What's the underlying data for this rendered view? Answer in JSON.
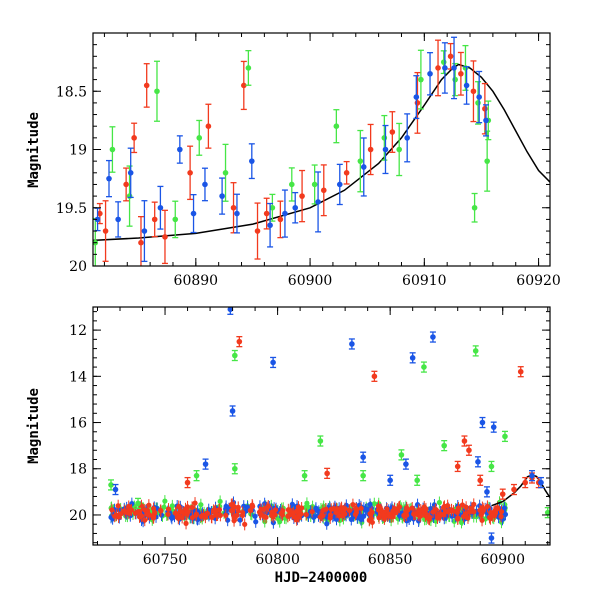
{
  "colors": {
    "red": "#f23a1e",
    "green": "#46e646",
    "blue": "#1a55e6",
    "model": "#000000"
  },
  "chart_data": [
    {
      "type": "scatter",
      "title": "",
      "xlabel": "",
      "ylabel": "Magnitude",
      "xlim": [
        60881,
        60921
      ],
      "ylim": [
        20,
        18
      ],
      "y_inverted": true,
      "xticks": [
        60890,
        60900,
        60910,
        60920
      ],
      "xtick_labels": [
        "60890",
        "60900",
        "60910",
        "60920"
      ],
      "yticks": [
        18.5,
        19,
        19.5,
        20
      ],
      "ytick_labels": [
        "18.5",
        "19",
        "19.5",
        "20"
      ],
      "series": [
        {
          "color": "red",
          "errorbars": true,
          "points": [
            [
              60881.6,
              19.55
            ],
            [
              60882.1,
              19.7
            ],
            [
              60883.9,
              19.3
            ],
            [
              60884.6,
              18.9
            ],
            [
              60885.2,
              19.8
            ],
            [
              60885.7,
              18.45
            ],
            [
              60886.4,
              19.6
            ],
            [
              60887.3,
              19.75
            ],
            [
              60889.5,
              19.2
            ],
            [
              60891.1,
              18.8
            ],
            [
              60893.3,
              19.5
            ],
            [
              60894.2,
              18.45
            ],
            [
              60895.4,
              19.7
            ],
            [
              60896.2,
              19.55
            ],
            [
              60897.4,
              19.6
            ],
            [
              60899.3,
              19.4
            ],
            [
              60901.2,
              19.35
            ],
            [
              60903.2,
              19.2
            ],
            [
              60905.3,
              19.0
            ],
            [
              60907.2,
              18.85
            ],
            [
              60909.4,
              18.6
            ],
            [
              60911.2,
              18.3
            ],
            [
              60912.3,
              18.2
            ],
            [
              60913.2,
              18.35
            ],
            [
              60914.3,
              18.5
            ],
            [
              60915.3,
              18.65
            ]
          ]
        },
        {
          "color": "green",
          "errorbars": true,
          "points": [
            [
              60881.2,
              19.8
            ],
            [
              60882.7,
              19.0
            ],
            [
              60884.2,
              19.4
            ],
            [
              60886.6,
              18.5
            ],
            [
              60888.2,
              19.6
            ],
            [
              60890.3,
              18.9
            ],
            [
              60892.6,
              19.2
            ],
            [
              60894.6,
              18.3
            ],
            [
              60896.7,
              19.5
            ],
            [
              60898.4,
              19.3
            ],
            [
              60900.4,
              19.3
            ],
            [
              60902.3,
              18.8
            ],
            [
              60904.4,
              19.1
            ],
            [
              60906.5,
              18.9
            ],
            [
              60907.8,
              19.0
            ],
            [
              60909.7,
              18.4
            ],
            [
              60911.7,
              18.25
            ],
            [
              60912.7,
              18.4
            ],
            [
              60913.6,
              18.3
            ],
            [
              60914.7,
              18.6
            ],
            [
              60915.6,
              18.75
            ],
            [
              60914.4,
              19.5
            ],
            [
              60915.5,
              19.1
            ]
          ]
        },
        {
          "color": "blue",
          "errorbars": true,
          "points": [
            [
              60881.4,
              19.6
            ],
            [
              60882.4,
              19.25
            ],
            [
              60883.2,
              19.6
            ],
            [
              60884.3,
              19.2
            ],
            [
              60885.5,
              19.7
            ],
            [
              60886.9,
              19.5
            ],
            [
              60888.6,
              19.0
            ],
            [
              60889.8,
              19.55
            ],
            [
              60890.8,
              19.3
            ],
            [
              60892.3,
              19.4
            ],
            [
              60893.6,
              19.55
            ],
            [
              60894.9,
              19.1
            ],
            [
              60896.5,
              19.65
            ],
            [
              60897.8,
              19.55
            ],
            [
              60898.7,
              19.5
            ],
            [
              60900.7,
              19.45
            ],
            [
              60902.6,
              19.3
            ],
            [
              60904.7,
              19.15
            ],
            [
              60906.6,
              19.0
            ],
            [
              60908.5,
              18.9
            ],
            [
              60909.3,
              18.55
            ],
            [
              60910.5,
              18.35
            ],
            [
              60911.8,
              18.3
            ],
            [
              60912.6,
              18.3
            ],
            [
              60913.7,
              18.45
            ],
            [
              60914.8,
              18.55
            ],
            [
              60915.4,
              18.75
            ]
          ]
        },
        {
          "color": "model",
          "type": "line",
          "points": [
            [
              60881,
              19.78
            ],
            [
              60885,
              19.76
            ],
            [
              60890,
              19.72
            ],
            [
              60895,
              19.64
            ],
            [
              60900,
              19.5
            ],
            [
              60903,
              19.35
            ],
            [
              60906,
              19.12
            ],
            [
              60908,
              18.9
            ],
            [
              60910,
              18.62
            ],
            [
              60911.5,
              18.4
            ],
            [
              60912.5,
              18.3
            ],
            [
              60913,
              18.27
            ],
            [
              60914,
              18.3
            ],
            [
              60915,
              18.38
            ],
            [
              60916,
              18.5
            ],
            [
              60917,
              18.66
            ],
            [
              60918,
              18.84
            ],
            [
              60919,
              19.02
            ],
            [
              60920,
              19.18
            ],
            [
              60921,
              19.28
            ]
          ]
        }
      ]
    },
    {
      "type": "scatter",
      "title": "",
      "xlabel": "HJD−2400000",
      "ylabel": "Magnitude",
      "xlim": [
        60718,
        60921
      ],
      "ylim": [
        21.3,
        11.0
      ],
      "y_inverted": true,
      "xticks": [
        60750,
        60800,
        60850,
        60900
      ],
      "xtick_labels": [
        "60750",
        "60800",
        "60850",
        "60900"
      ],
      "yticks": [
        12,
        14,
        16,
        18,
        20
      ],
      "ytick_labels": [
        "12",
        "14",
        "16",
        "18",
        "20"
      ],
      "baseline": {
        "x_start": 60726,
        "x_end": 60902,
        "mag": 19.9
      },
      "series": [
        {
          "color": "red",
          "errorbars": true,
          "points": [
            [
              60783,
              12.5
            ],
            [
              60843,
              14.0
            ],
            [
              60908,
              13.8
            ],
            [
              60883,
              16.8
            ],
            [
              60885,
              17.2
            ],
            [
              60822,
              18.2
            ],
            [
              60760,
              18.6
            ],
            [
              60880,
              17.9
            ],
            [
              60890,
              18.5
            ],
            [
              60900,
              19.1
            ],
            [
              60905,
              18.9
            ],
            [
              60910,
              18.6
            ],
            [
              60913,
              18.4
            ],
            [
              60916,
              18.6
            ]
          ]
        },
        {
          "color": "green",
          "errorbars": true,
          "points": [
            [
              60781,
              13.1
            ],
            [
              60865,
              13.6
            ],
            [
              60888,
              12.9
            ],
            [
              60901,
              16.6
            ],
            [
              60781,
              18.0
            ],
            [
              60764,
              18.3
            ],
            [
              60819,
              16.8
            ],
            [
              60874,
              17.0
            ],
            [
              60855,
              17.4
            ],
            [
              60812,
              18.3
            ],
            [
              60838,
              18.3
            ],
            [
              60862,
              18.5
            ],
            [
              60895,
              17.9
            ],
            [
              60726,
              18.7
            ],
            [
              60738,
              19.5
            ],
            [
              60920,
              19.9
            ]
          ]
        },
        {
          "color": "blue",
          "errorbars": true,
          "points": [
            [
              60779,
              11.1
            ],
            [
              60798,
              13.4
            ],
            [
              60833,
              12.6
            ],
            [
              60860,
              13.2
            ],
            [
              60869,
              12.3
            ],
            [
              60780,
              15.5
            ],
            [
              60891,
              16.0
            ],
            [
              60896,
              16.2
            ],
            [
              60838,
              17.5
            ],
            [
              60857,
              17.8
            ],
            [
              60768,
              17.8
            ],
            [
              60889,
              17.7
            ],
            [
              60728,
              18.9
            ],
            [
              60850,
              18.5
            ],
            [
              60893,
              19.0
            ],
            [
              60895,
              21.0
            ],
            [
              60913,
              18.3
            ],
            [
              60917,
              18.6
            ]
          ]
        },
        {
          "color": "model",
          "type": "line",
          "points": [
            [
              60895,
              19.6
            ],
            [
              60900,
              19.42
            ],
            [
              60905,
              19.05
            ],
            [
              60908,
              18.75
            ],
            [
              60911,
              18.35
            ],
            [
              60913,
              18.27
            ],
            [
              60915,
              18.33
            ],
            [
              60917,
              18.6
            ],
            [
              60919,
              18.95
            ],
            [
              60921,
              19.25
            ]
          ]
        }
      ]
    }
  ]
}
